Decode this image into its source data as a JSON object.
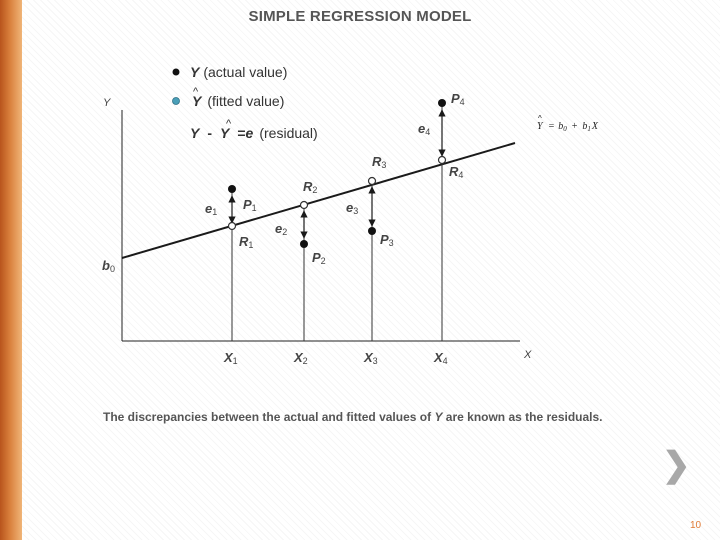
{
  "title": "SIMPLE REGRESSION MODEL",
  "axes": {
    "y_label": "Y",
    "x_label": "X",
    "intercept_label": "b",
    "intercept_sub": "0"
  },
  "legend": {
    "actual": {
      "var": "Y",
      "text": "(actual value)"
    },
    "fitted": {
      "var": "Y",
      "text": "(fitted value)"
    },
    "residual": {
      "lhs": "Y",
      "minus": "-",
      "hat": "Y",
      "eq": "=",
      "e": "e",
      "text": "(residual)"
    }
  },
  "equation": {
    "lhs": "Y",
    "eq": "=",
    "b0": "b",
    "b0_sub": "0",
    "plus": "+",
    "b1": "b",
    "b1_sub": "1",
    "x": "X"
  },
  "x_ticks": [
    {
      "label": "X",
      "sub": "1"
    },
    {
      "label": "X",
      "sub": "2"
    },
    {
      "label": "X",
      "sub": "3"
    },
    {
      "label": "X",
      "sub": "4"
    }
  ],
  "actual_points": [
    {
      "label": "P",
      "sub": "1"
    },
    {
      "label": "P",
      "sub": "2"
    },
    {
      "label": "P",
      "sub": "3"
    },
    {
      "label": "P",
      "sub": "4"
    }
  ],
  "fitted_points": [
    {
      "label": "R",
      "sub": "1"
    },
    {
      "label": "R",
      "sub": "2"
    },
    {
      "label": "R",
      "sub": "3"
    },
    {
      "label": "R",
      "sub": "4"
    }
  ],
  "residuals": [
    {
      "label": "e",
      "sub": "1"
    },
    {
      "label": "e",
      "sub": "2"
    },
    {
      "label": "e",
      "sub": "3"
    },
    {
      "label": "e",
      "sub": "4"
    }
  ],
  "caption": {
    "pre": "The discrepancies between the actual and fitted values of ",
    "var": "Y",
    "post": " are known as the residuals."
  },
  "next_glyph": "❯",
  "page_number": "10",
  "colors": {
    "accent": "#e07a35",
    "fitted_marker": "#4a9fb8",
    "line": "#1a1a1a"
  }
}
